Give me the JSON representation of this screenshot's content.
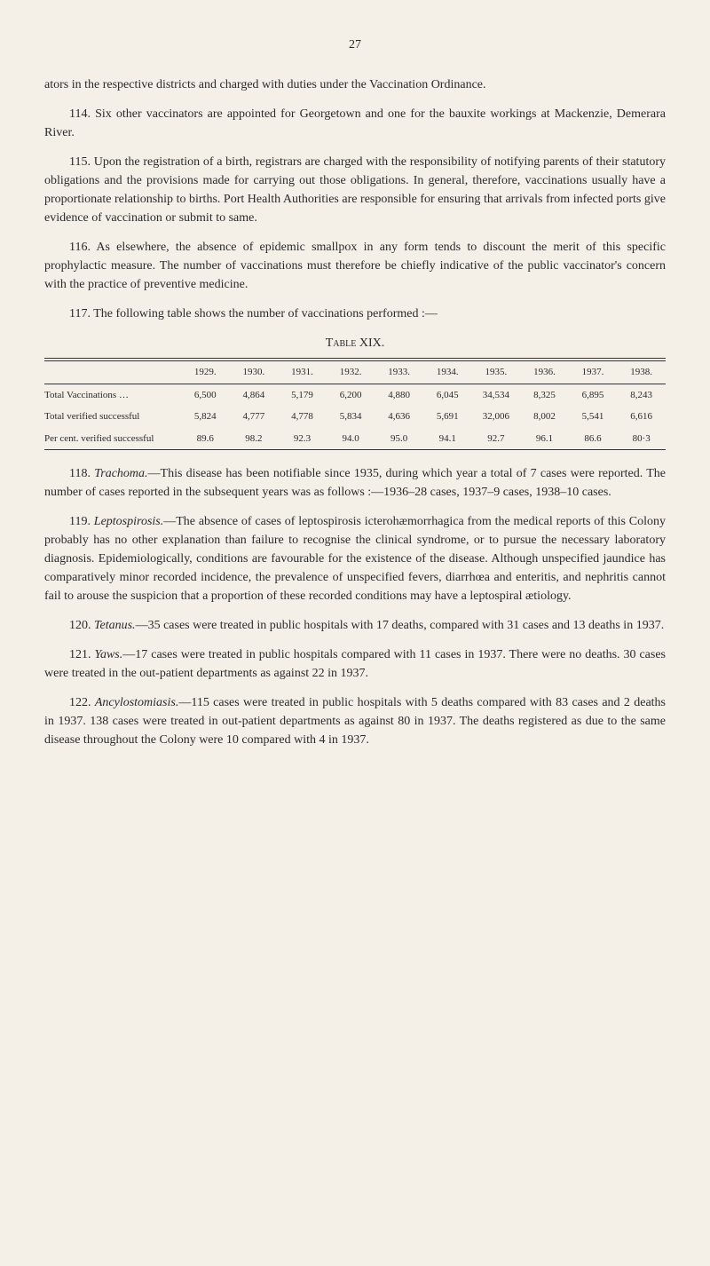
{
  "page_number": "27",
  "para1": "ators in the respective districts and charged with duties under the Vaccination Ordinance.",
  "para2": "114. Six other vaccinators are appointed for Georgetown and one for the bauxite workings at Mackenzie, Demerara River.",
  "para3": "115. Upon the registration of a birth, registrars are charged with the responsibility of notifying parents of their statutory obligations and the provisions made for carrying out those obligations. In general, therefore, vaccinations usually have a proportionate relationship to births. Port Health Authorities are responsible for ensuring that arrivals from infected ports give evidence of vaccination or submit to same.",
  "para4": "116. As elsewhere, the absence of epidemic smallpox in any form tends to discount the merit of this specific prophylactic measure. The number of vaccinations must therefore be chiefly indicative of the public vaccinator's concern with the practice of preventive medicine.",
  "para5": "117. The following table shows the number of vaccinations performed :—",
  "table_title": "Table XIX.",
  "table": {
    "columns": [
      "",
      "1929.",
      "1930.",
      "1931.",
      "1932.",
      "1933.",
      "1934.",
      "1935.",
      "1936.",
      "1937.",
      "1938."
    ],
    "rows": [
      [
        "Total Vaccinations   …",
        "6,500",
        "4,864",
        "5,179",
        "6,200",
        "4,880",
        "6,045",
        "34,534",
        "8,325",
        "6,895",
        "8,243"
      ],
      [
        "Total verified successful",
        "5,824",
        "4,777",
        "4,778",
        "5,834",
        "4,636",
        "5,691",
        "32,006",
        "8,002",
        "5,541",
        "6,616"
      ],
      [
        "Per cent. verified successful",
        "89.6",
        "98.2",
        "92.3",
        "94.0",
        "95.0",
        "94.1",
        "92.7",
        "96.1",
        "86.6",
        "80·3"
      ]
    ],
    "col_widths": [
      "22%",
      "7.8%",
      "7.8%",
      "7.8%",
      "7.8%",
      "7.8%",
      "7.8%",
      "7.8%",
      "7.8%",
      "7.8%",
      "7.8%"
    ],
    "font_size": 11,
    "border_color": "#333333"
  },
  "para6_a": "118. ",
  "para6_em": "Trachoma.",
  "para6_b": "—This disease has been notifiable since 1935, during which year a total of 7 cases were reported. The number of cases reported in the subsequent years was as follows :—1936–28 cases, 1937–9 cases, 1938–10 cases.",
  "para7_a": "119. ",
  "para7_em": "Leptospirosis.",
  "para7_b": "—The absence of cases of leptospirosis icterohæmorrhagica from the medical reports of this Colony probably has no other explanation than failure to recognise the clinical syndrome, or to pursue the necessary laboratory diagnosis. Epidemiologically, conditions are favourable for the existence of the disease. Although unspecified jaundice has comparatively minor recorded incidence, the prevalence of unspecified fevers, diarrhœa and enteritis, and nephritis cannot fail to arouse the suspicion that a proportion of these recorded conditions may have a leptospiral ætiology.",
  "para8_a": "120. ",
  "para8_em": "Tetanus.",
  "para8_b": "—35 cases were treated in public hospitals with 17 deaths, compared with 31 cases and 13 deaths in 1937.",
  "para9_a": "121. ",
  "para9_em": "Yaws.",
  "para9_b": "—17 cases were treated in public hospitals compared with 11 cases in 1937. There were no deaths. 30 cases were treated in the out-patient departments as against 22 in 1937.",
  "para10_a": "122. ",
  "para10_em": "Ancylostomiasis.",
  "para10_b": "—115 cases were treated in public hospitals with 5 deaths compared with 83 cases and 2 deaths in 1937. 138 cases were treated in out-patient departments as against 80 in 1937. The deaths registered as due to the same disease throughout the Colony were 10 compared with 4 in 1937.",
  "styling": {
    "background_color": "#f4f0e8",
    "text_color": "#2a2a2a",
    "body_font_size": 14,
    "body_width": 700
  }
}
